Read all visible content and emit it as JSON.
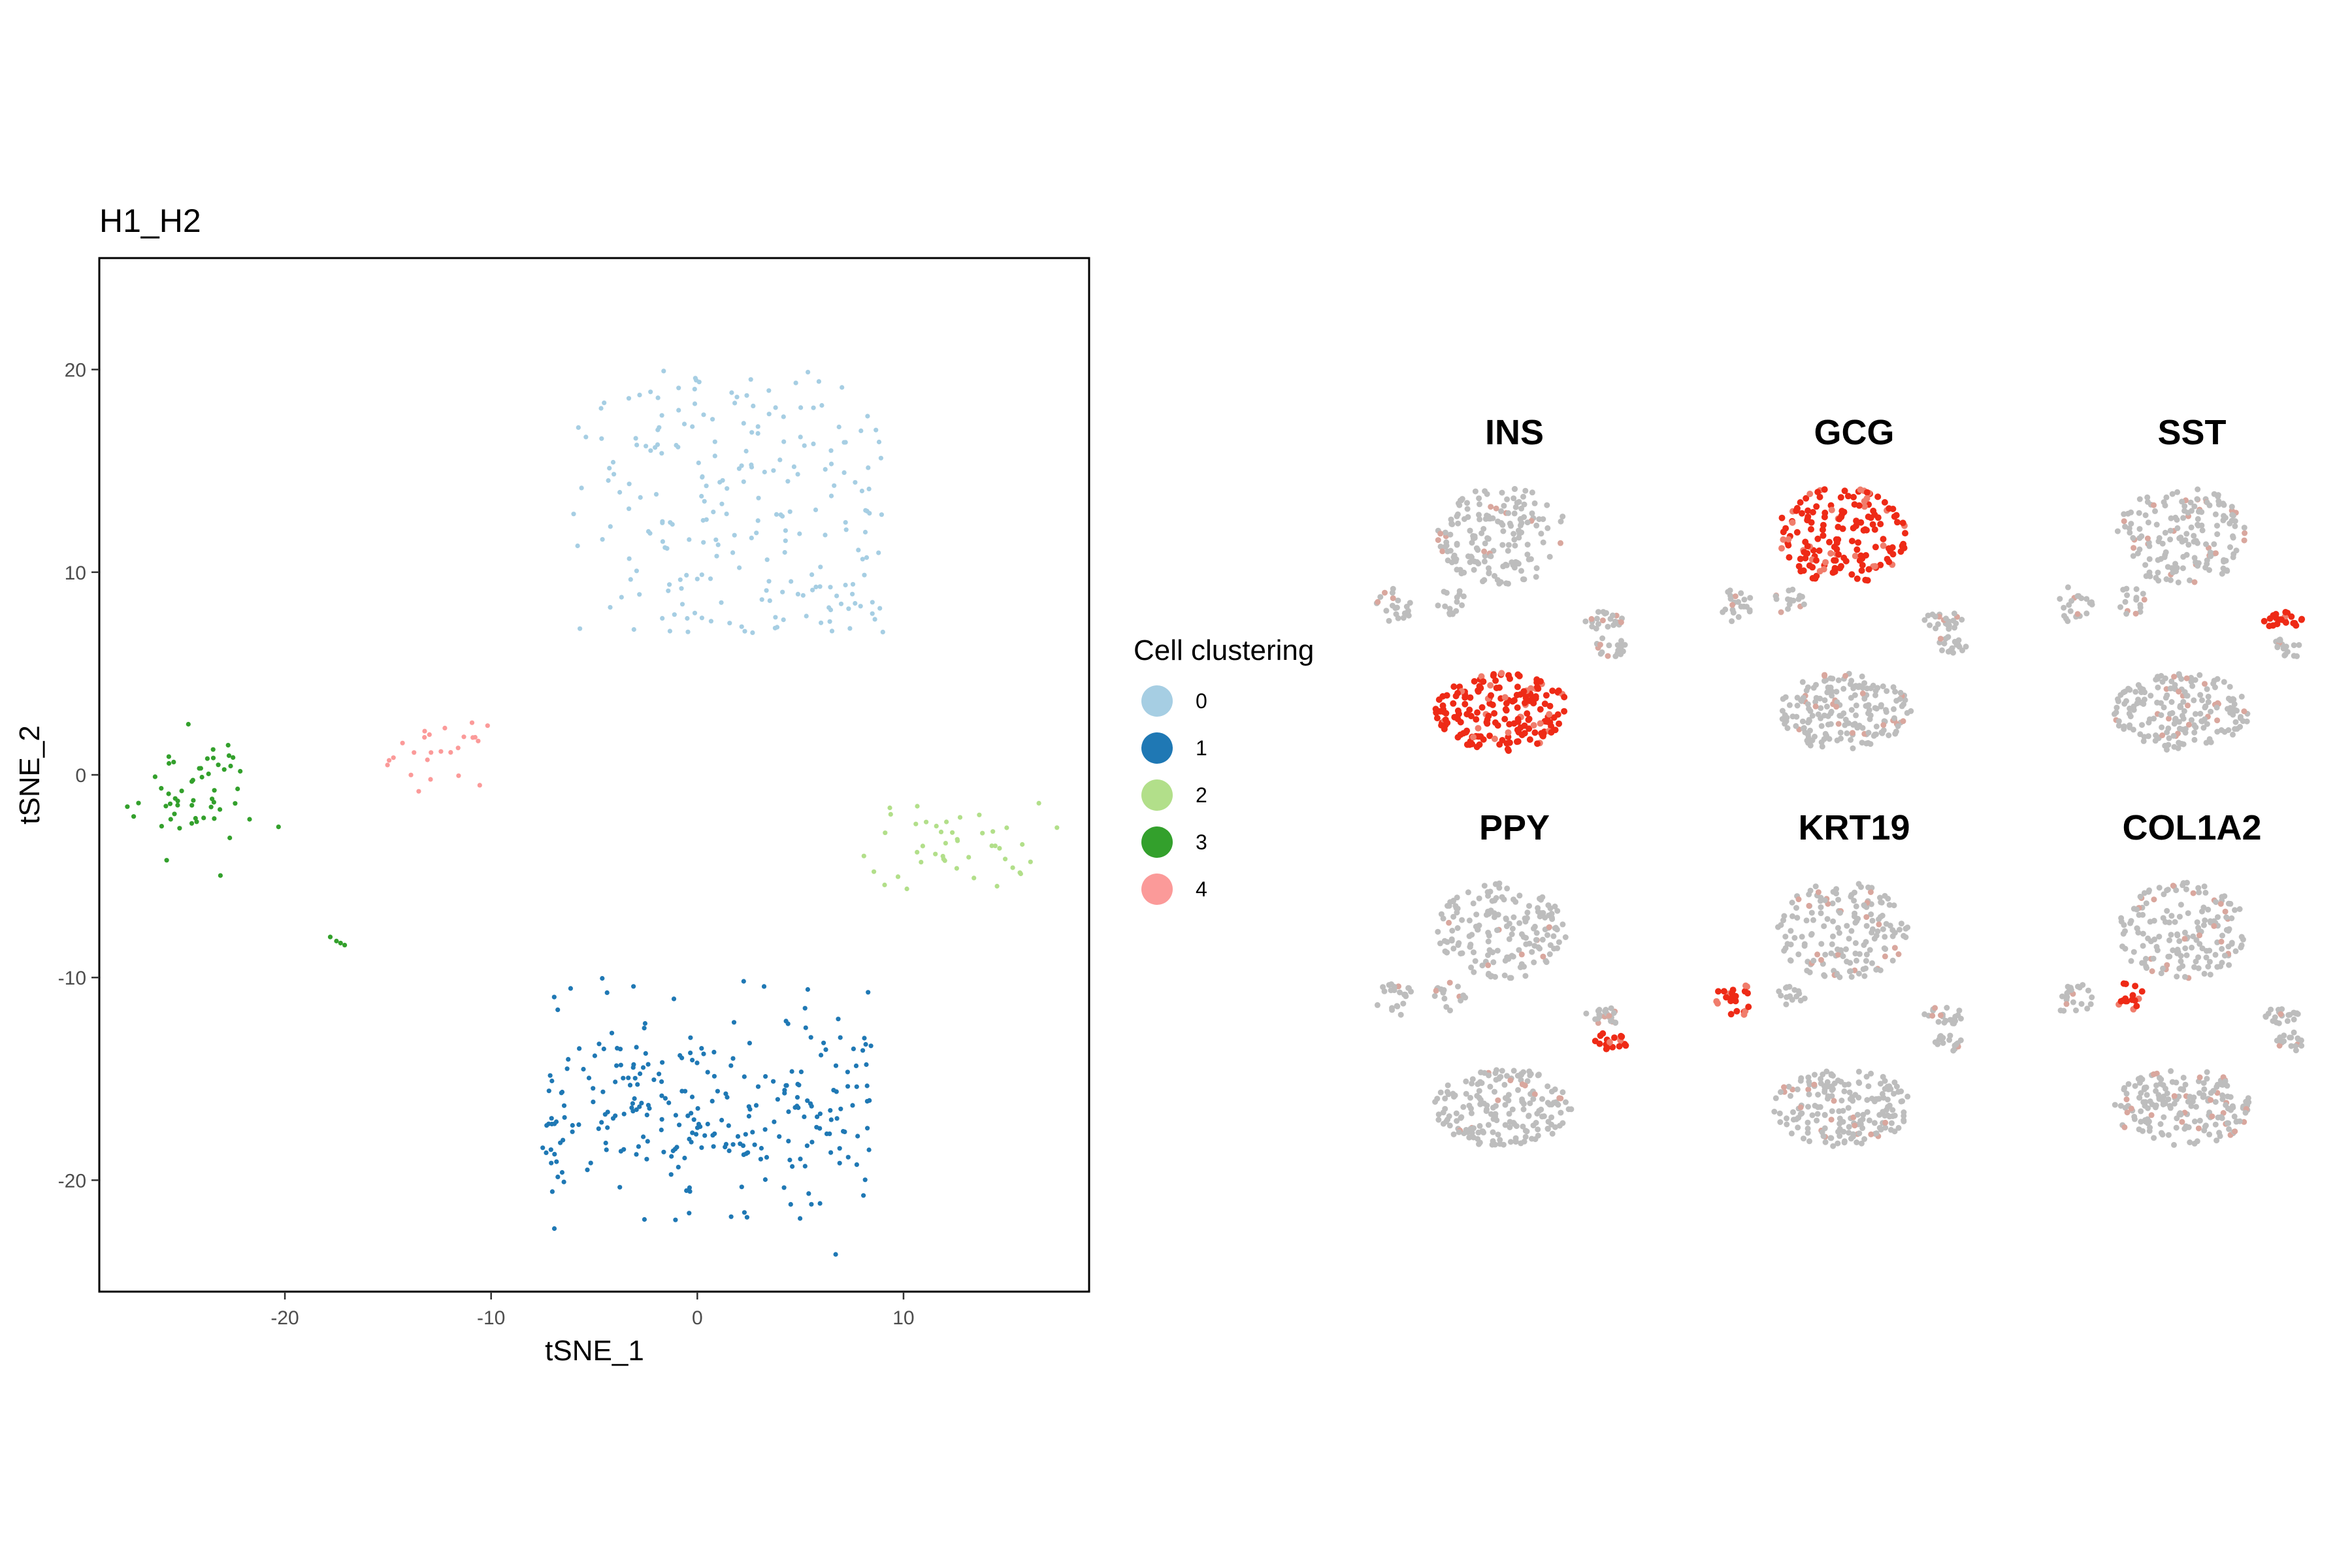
{
  "chart_data": [
    {
      "type": "scatter",
      "title": "H1_H2",
      "xlabel": "tSNE_1",
      "ylabel": "tSNE_2",
      "xlim": [
        -29,
        19
      ],
      "ylim": [
        -25.5,
        25.5
      ],
      "xticks": [
        -20,
        -10,
        0,
        10
      ],
      "yticks": [
        -20,
        -10,
        0,
        10,
        20
      ],
      "grid": false,
      "legend": {
        "title": "Cell clustering",
        "position": "right",
        "entries": [
          {
            "label": "0",
            "color": "#a6cee3"
          },
          {
            "label": "1",
            "color": "#1f78b4"
          },
          {
            "label": "2",
            "color": "#b2df8a"
          },
          {
            "label": "3",
            "color": "#33a02c"
          },
          {
            "label": "4",
            "color": "#fb9a99"
          }
        ]
      },
      "series": [
        {
          "name": "0",
          "color": "#a6cee3",
          "center": [
            1.5,
            13.5
          ],
          "spread": [
            7.5,
            6.5
          ],
          "count": 230
        },
        {
          "name": "1",
          "color": "#1f78b4",
          "center": [
            0.5,
            -16.5
          ],
          "spread": [
            8.0,
            4.5
          ],
          "count": 280
        },
        {
          "name": "2",
          "color": "#b2df8a",
          "center": [
            12.5,
            -3.5
          ],
          "spread": [
            3.5,
            1.8
          ],
          "count": 45
        },
        {
          "name": "3",
          "color": "#33a02c",
          "center": [
            -24.5,
            -1.0
          ],
          "spread": [
            2.5,
            2.3
          ],
          "count": 55
        },
        {
          "name": "4",
          "color": "#fb9a99",
          "center": [
            -12.5,
            1.0
          ],
          "spread": [
            1.8,
            1.2
          ],
          "count": 25
        }
      ]
    },
    {
      "type": "scatter",
      "subtype": "feature_plot_grid",
      "panels": [
        {
          "gene": "INS",
          "high_cluster": "beta-bottom"
        },
        {
          "gene": "GCG",
          "high_cluster": "alpha-top"
        },
        {
          "gene": "SST",
          "high_cluster": "delta-right"
        },
        {
          "gene": "PPY",
          "high_cluster": "pp-right"
        },
        {
          "gene": "KRT19",
          "high_cluster": "ductal-left"
        },
        {
          "gene": "COL1A2",
          "high_cluster": "stellate-left"
        }
      ],
      "low_color": "#bdbdbd",
      "high_color": "#ee2a16"
    }
  ]
}
